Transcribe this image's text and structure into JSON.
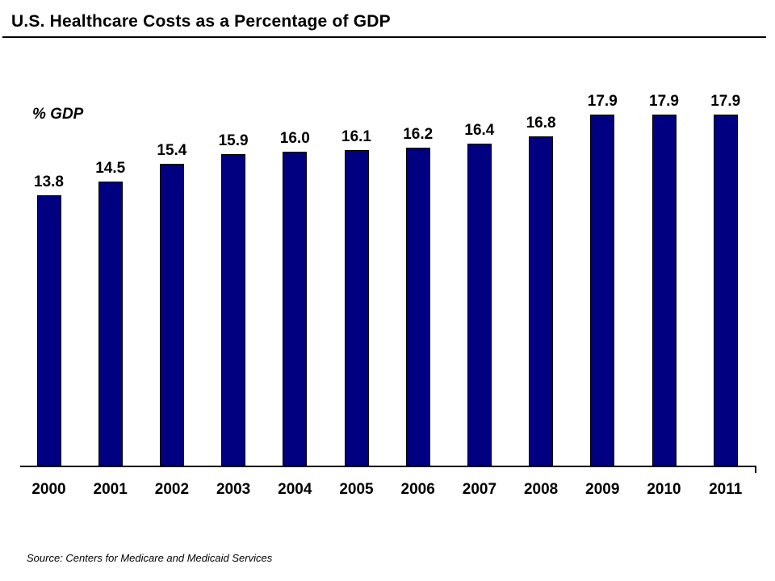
{
  "chart_data": {
    "type": "bar",
    "title": "U.S. Healthcare Costs as a Percentage of GDP",
    "unit_label": "% GDP",
    "categories": [
      "2000",
      "2001",
      "2002",
      "2003",
      "2004",
      "2005",
      "2006",
      "2007",
      "2008",
      "2009",
      "2010",
      "2011"
    ],
    "values": [
      13.8,
      14.5,
      15.4,
      15.9,
      16.0,
      16.1,
      16.2,
      16.4,
      16.8,
      17.9,
      17.9,
      17.9
    ],
    "value_labels": [
      "13.8",
      "14.5",
      "15.4",
      "15.9",
      "16.0",
      "16.1",
      "16.2",
      "16.4",
      "16.8",
      "17.9",
      "17.9",
      "17.9"
    ],
    "xlabel": "",
    "ylabel": "% GDP",
    "ylim": [
      0,
      18
    ],
    "grid": false,
    "legend": "none",
    "bar_color": "#000080",
    "bar_border_color": "#000000",
    "source": "Source: Centers for Medicare and Medicaid Services"
  }
}
